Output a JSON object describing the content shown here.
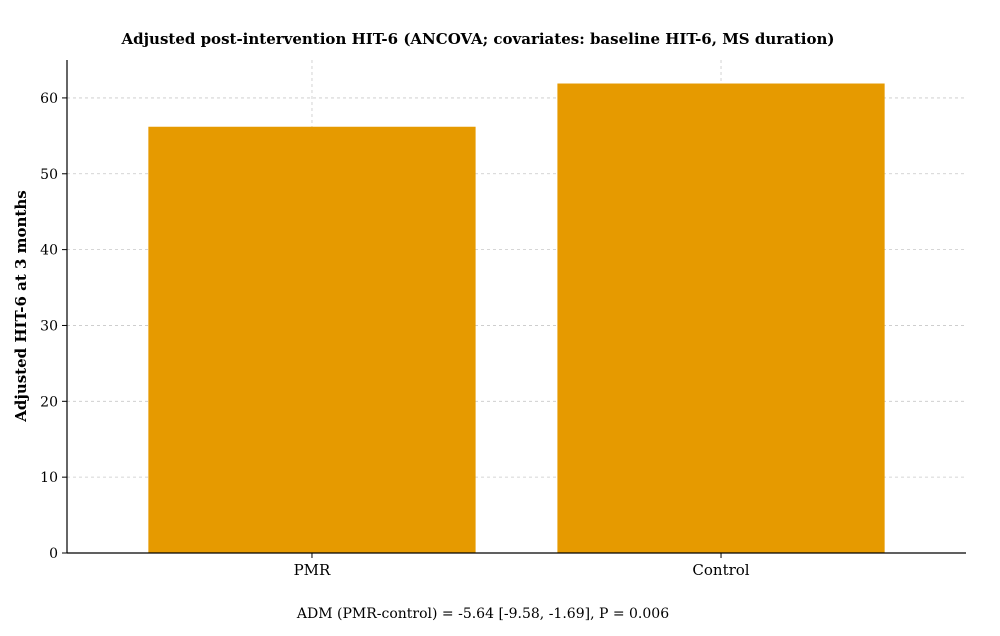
{
  "chart_data": {
    "type": "bar",
    "title": "Adjusted post-intervention HIT-6 (ANCOVA; covariates: baseline HIT-6, MS duration)",
    "xlabel": "",
    "ylabel": "Adjusted HIT-6 at 3 months",
    "categories": [
      "PMR",
      "Control"
    ],
    "values": [
      56.2,
      61.9
    ],
    "ylim": [
      0,
      65
    ],
    "yticks": [
      0,
      10,
      20,
      30,
      40,
      50,
      60
    ],
    "grid": true,
    "bar_color": "#E69A00",
    "annotation": "ADM (PMR-control) = -5.64 [-9.58, -1.69], P = 0.006"
  }
}
